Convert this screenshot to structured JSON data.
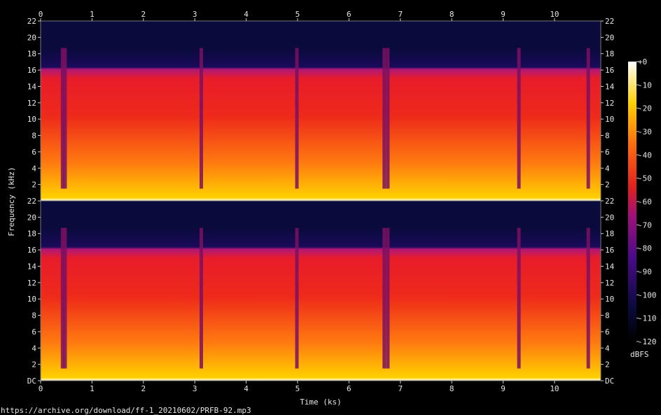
{
  "chart_data": {
    "type": "heatmap",
    "title": "",
    "xlabel": "Time (ks)",
    "ylabel": "Frequency (kHz)",
    "xlim": [
      0,
      10.9
    ],
    "ylim_khz": [
      0,
      22
    ],
    "x_ticks": [
      "0",
      "1",
      "2",
      "3",
      "4",
      "5",
      "6",
      "7",
      "8",
      "9",
      "10"
    ],
    "y_ticks": [
      "DC",
      "2",
      "4",
      "6",
      "8",
      "10",
      "12",
      "14",
      "16",
      "18",
      "20",
      "22"
    ],
    "channels": [
      "channel-1",
      "channel-2"
    ],
    "cutoff_khz": 18.7,
    "colorbar": {
      "label": "dBFS",
      "ticks": [
        "+0",
        "-10",
        "-20",
        "-30",
        "-40",
        "-50",
        "-60",
        "-70",
        "-80",
        "-90",
        "-100",
        "-110",
        "-120"
      ],
      "range": [
        -120,
        0
      ]
    },
    "quiet_segments_ks": [
      0.42,
      0.47,
      3.12,
      4.98,
      6.68,
      6.75,
      9.3,
      10.65
    ],
    "colors": {
      "background": "#000000",
      "noise_floor": "#0a0a3c",
      "mid_level": "#e0201e",
      "high_level": "#ffd000",
      "peak": "#ffffff"
    }
  },
  "footer": {
    "source": "https://archive.org/download/ff-1_20210602/PRFB-92.mp3"
  }
}
